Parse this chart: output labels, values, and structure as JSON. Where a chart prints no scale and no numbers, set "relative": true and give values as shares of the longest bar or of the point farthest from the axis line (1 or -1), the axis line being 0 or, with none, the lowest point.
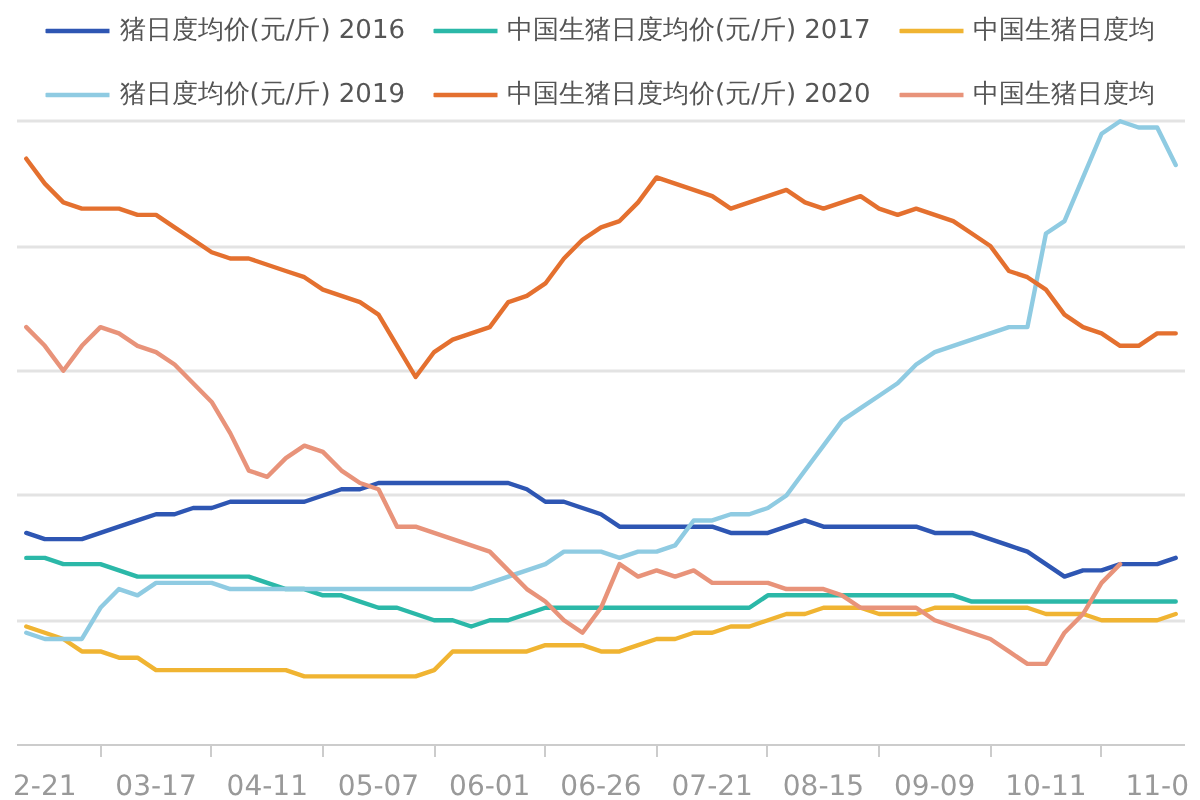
{
  "chart_data": {
    "type": "line",
    "relative": true,
    "grid": "y",
    "legend": "top",
    "categories": [
      null,
      "2-21",
      null,
      null,
      null,
      null,
      null,
      "03-17",
      null,
      null,
      null,
      null,
      null,
      "04-11",
      null,
      null,
      null,
      null,
      null,
      "05-07",
      null,
      null,
      null,
      null,
      null,
      "06-01",
      null,
      null,
      null,
      null,
      null,
      "06-26",
      null,
      null,
      null,
      null,
      null,
      "07-21",
      null,
      null,
      null,
      null,
      null,
      "08-15",
      null,
      null,
      null,
      null,
      null,
      "09-09",
      null,
      null,
      null,
      null,
      null,
      "10-11",
      null,
      null,
      null,
      null,
      null,
      "11-0",
      null
    ],
    "series": [
      {
        "name": "猪日度均价(元/斤) 2016",
        "color": "#2e56b3",
        "values": [
          0.34,
          0.33,
          0.33,
          0.33,
          0.34,
          0.35,
          0.36,
          0.37,
          0.37,
          0.38,
          0.38,
          0.39,
          0.39,
          0.39,
          0.39,
          0.39,
          0.4,
          0.41,
          0.41,
          0.42,
          0.42,
          0.42,
          0.42,
          0.42,
          0.42,
          0.42,
          0.42,
          0.41,
          0.39,
          0.39,
          0.38,
          0.37,
          0.35,
          0.35,
          0.35,
          0.35,
          0.35,
          0.35,
          0.34,
          0.34,
          0.34,
          0.35,
          0.36,
          0.35,
          0.35,
          0.35,
          0.35,
          0.35,
          0.35,
          0.34,
          0.34,
          0.34,
          0.33,
          0.32,
          0.31,
          0.29,
          0.27,
          0.28,
          0.28,
          0.29,
          0.29,
          0.29,
          0.3
        ]
      },
      {
        "name": "中国生猪日度均价(元/斤) 2017",
        "color": "#2bb8a8",
        "values": [
          0.3,
          0.3,
          0.29,
          0.29,
          0.29,
          0.28,
          0.27,
          0.27,
          0.27,
          0.27,
          0.27,
          0.27,
          0.27,
          0.26,
          0.25,
          0.25,
          0.24,
          0.24,
          0.23,
          0.22,
          0.22,
          0.21,
          0.2,
          0.2,
          0.19,
          0.2,
          0.2,
          0.21,
          0.22,
          0.22,
          0.22,
          0.22,
          0.22,
          0.22,
          0.22,
          0.22,
          0.22,
          0.22,
          0.22,
          0.22,
          0.24,
          0.24,
          0.24,
          0.24,
          0.24,
          0.24,
          0.24,
          0.24,
          0.24,
          0.24,
          0.24,
          0.23,
          0.23,
          0.23,
          0.23,
          0.23,
          0.23,
          0.23,
          0.23,
          0.23,
          0.23,
          0.23,
          0.23
        ]
      },
      {
        "name": "中国生猪日度均",
        "color": "#f0b432",
        "values": [
          0.19,
          0.18,
          0.17,
          0.15,
          0.15,
          0.14,
          0.14,
          0.12,
          0.12,
          0.12,
          0.12,
          0.12,
          0.12,
          0.12,
          0.12,
          0.11,
          0.11,
          0.11,
          0.11,
          0.11,
          0.11,
          0.11,
          0.12,
          0.15,
          0.15,
          0.15,
          0.15,
          0.15,
          0.16,
          0.16,
          0.16,
          0.15,
          0.15,
          0.16,
          0.17,
          0.17,
          0.18,
          0.18,
          0.19,
          0.19,
          0.2,
          0.21,
          0.21,
          0.22,
          0.22,
          0.22,
          0.21,
          0.21,
          0.21,
          0.22,
          0.22,
          0.22,
          0.22,
          0.22,
          0.22,
          0.21,
          0.21,
          0.21,
          0.2,
          0.2,
          0.2,
          0.2,
          0.21
        ]
      },
      {
        "name": "猪日度均价(元/斤) 2019",
        "color": "#8fcbe2",
        "values": [
          0.18,
          0.17,
          0.17,
          0.17,
          0.22,
          0.25,
          0.24,
          0.26,
          0.26,
          0.26,
          0.26,
          0.25,
          0.25,
          0.25,
          0.25,
          0.25,
          0.25,
          0.25,
          0.25,
          0.25,
          0.25,
          0.25,
          0.25,
          0.25,
          0.25,
          0.26,
          0.27,
          0.28,
          0.29,
          0.31,
          0.31,
          0.31,
          0.3,
          0.31,
          0.31,
          0.32,
          0.36,
          0.36,
          0.37,
          0.37,
          0.38,
          0.4,
          0.44,
          0.48,
          0.52,
          0.54,
          0.56,
          0.58,
          0.61,
          0.63,
          0.64,
          0.65,
          0.66,
          0.67,
          0.67,
          0.82,
          0.84,
          0.91,
          0.98,
          1.0,
          0.99,
          0.99,
          0.93
        ]
      },
      {
        "name": "中国生猪日度均价(元/斤) 2020",
        "color": "#e4702f",
        "values": [
          0.94,
          0.9,
          0.87,
          0.86,
          0.86,
          0.86,
          0.85,
          0.85,
          0.83,
          0.81,
          0.79,
          0.78,
          0.78,
          0.77,
          0.76,
          0.75,
          0.73,
          0.72,
          0.71,
          0.69,
          0.64,
          0.59,
          0.63,
          0.65,
          0.66,
          0.67,
          0.71,
          0.72,
          0.74,
          0.78,
          0.81,
          0.83,
          0.84,
          0.87,
          0.91,
          0.9,
          0.89,
          0.88,
          0.86,
          0.87,
          0.88,
          0.89,
          0.87,
          0.86,
          0.87,
          0.88,
          0.86,
          0.85,
          0.86,
          0.85,
          0.84,
          0.82,
          0.8,
          0.76,
          0.75,
          0.73,
          0.69,
          0.67,
          0.66,
          0.64,
          0.64,
          0.66,
          0.66
        ]
      },
      {
        "name": "中国生猪日度均",
        "color": "#e8937a",
        "values": [
          0.67,
          0.64,
          0.6,
          0.64,
          0.67,
          0.66,
          0.64,
          0.63,
          0.61,
          0.58,
          0.55,
          0.5,
          0.44,
          0.43,
          0.46,
          0.48,
          0.47,
          0.44,
          0.42,
          0.41,
          0.35,
          0.35,
          0.34,
          0.33,
          0.32,
          0.31,
          0.28,
          0.25,
          0.23,
          0.2,
          0.18,
          0.22,
          0.29,
          0.27,
          0.28,
          0.27,
          0.28,
          0.26,
          0.26,
          0.26,
          0.26,
          0.25,
          0.25,
          0.25,
          0.24,
          0.22,
          0.22,
          0.22,
          0.22,
          0.2,
          0.19,
          0.18,
          0.17,
          0.15,
          0.13,
          0.13,
          0.18,
          0.21,
          0.26,
          0.29,
          null,
          null,
          null
        ]
      }
    ]
  }
}
